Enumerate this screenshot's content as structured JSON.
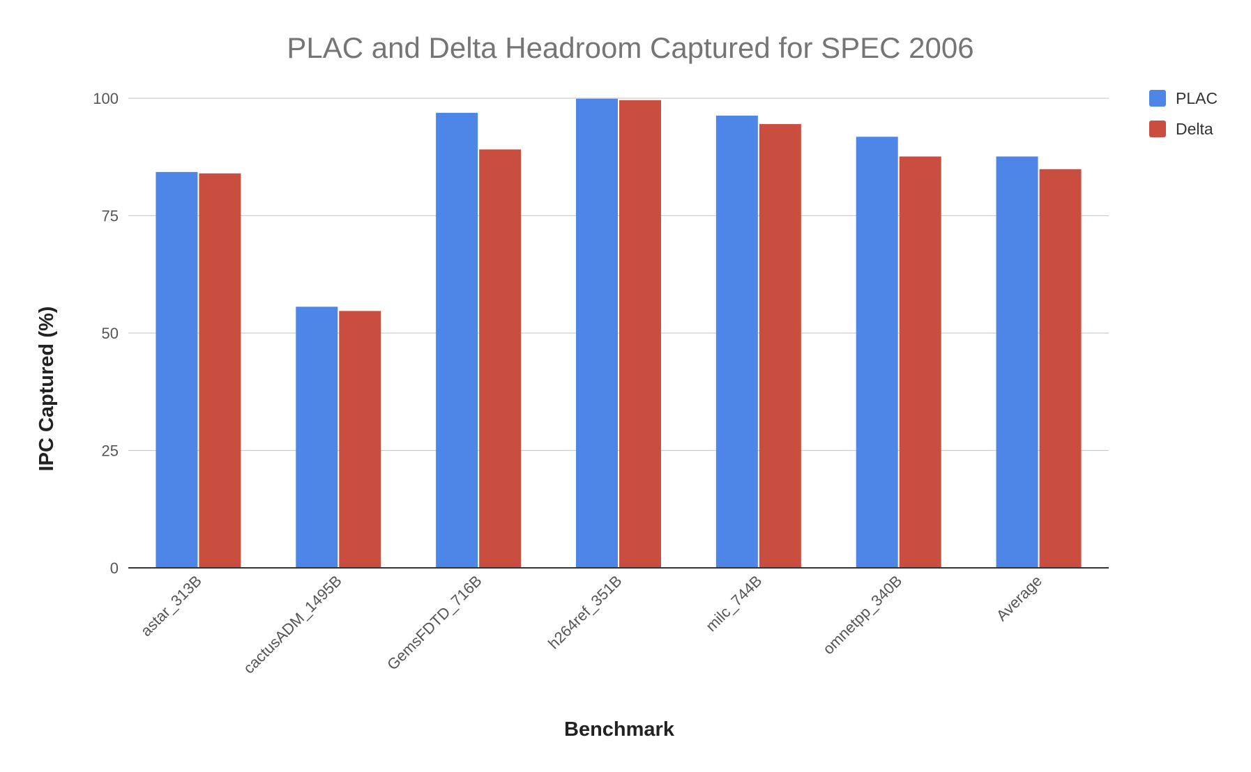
{
  "chart_data": {
    "type": "bar",
    "title": "PLAC and Delta Headroom Captured for SPEC 2006",
    "xlabel": "Benchmark",
    "ylabel": "IPC Captured (%)",
    "categories": [
      "astar_313B",
      "cactusADM_1495B",
      "GemsFDTD_716B",
      "h264ref_351B",
      "milc_744B",
      "omnetpp_340B",
      "Average"
    ],
    "series": [
      {
        "name": "PLAC",
        "color": "#4e86e8",
        "values": [
          84.3,
          55.6,
          96.9,
          99.9,
          96.3,
          91.8,
          87.6
        ]
      },
      {
        "name": "Delta",
        "color": "#c94e3f",
        "values": [
          84.0,
          54.7,
          89.1,
          99.6,
          94.5,
          87.6,
          84.9
        ]
      }
    ],
    "ylim": [
      0,
      100
    ],
    "yticks": [
      0,
      25,
      50,
      75,
      100
    ],
    "grid": true,
    "legend_position": "top-right"
  }
}
